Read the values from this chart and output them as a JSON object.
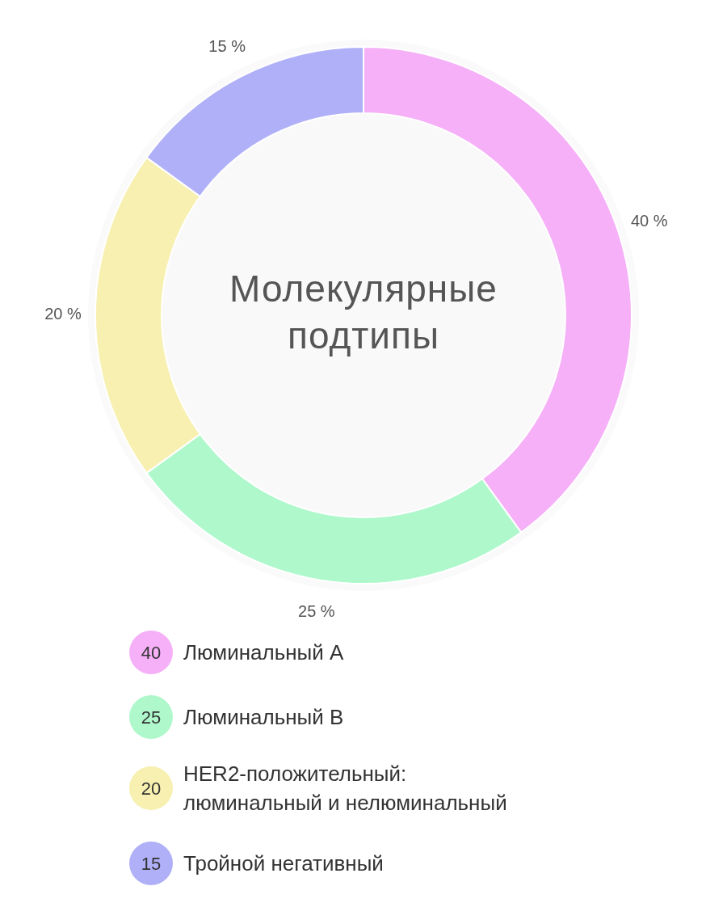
{
  "chart_data": {
    "type": "donut",
    "title": "Молекулярные подтипы",
    "categories": [
      "Люминальный А",
      "Люминальный В",
      "HER2-положительный: люминальный и нелюминальный",
      "Тройной негативный"
    ],
    "values": [
      40,
      25,
      20,
      15
    ],
    "colors": [
      "#f5b0f7",
      "#aef8cb",
      "#f7f0b0",
      "#b0b0f8"
    ],
    "value_labels": [
      "40",
      "25",
      "20",
      "15"
    ],
    "annotations": [
      "40 %",
      "25 %",
      "20 %",
      "15 %"
    ],
    "legend": "bottom"
  }
}
